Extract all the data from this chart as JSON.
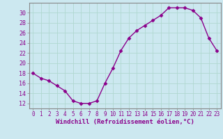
{
  "x": [
    0,
    1,
    2,
    3,
    4,
    5,
    6,
    7,
    8,
    9,
    10,
    11,
    12,
    13,
    14,
    15,
    16,
    17,
    18,
    19,
    20,
    21,
    22,
    23
  ],
  "y": [
    18,
    17,
    16.5,
    15.5,
    14.5,
    12.5,
    12,
    12,
    12.5,
    16,
    19,
    22.5,
    25,
    26.5,
    27.5,
    28.5,
    29.5,
    31,
    31,
    31,
    30.5,
    29,
    25,
    22.5
  ],
  "line_color": "#8b008b",
  "marker": "D",
  "markersize": 2.5,
  "linewidth": 1.0,
  "bg_color": "#cce8f0",
  "grid_color": "#b0d8d0",
  "xlabel": "Windchill (Refroidissement éolien,°C)",
  "xlabel_fontsize": 6.5,
  "ylabel_ticks": [
    12,
    14,
    16,
    18,
    20,
    22,
    24,
    26,
    28,
    30
  ],
  "ylim": [
    11,
    32
  ],
  "xlim": [
    -0.5,
    23.5
  ],
  "tick_fontsize": 5.5,
  "xticks": [
    0,
    1,
    2,
    3,
    4,
    5,
    6,
    7,
    8,
    9,
    10,
    11,
    12,
    13,
    14,
    15,
    16,
    17,
    18,
    19,
    20,
    21,
    22,
    23
  ],
  "spine_color": "#888888",
  "tick_color": "#888888"
}
